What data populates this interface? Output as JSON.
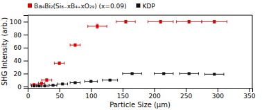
{
  "chart_data": {
    "type": "scatter",
    "xlabel": "Particle Size (μm)",
    "ylabel": "SHG Intensity (arb.)",
    "xlim": [
      0,
      355
    ],
    "ylim": [
      -2,
      110
    ],
    "xticks": [
      0,
      50,
      100,
      150,
      200,
      250,
      300,
      350
    ],
    "yticks": [
      0,
      20,
      40,
      60,
      80,
      100
    ],
    "grid": false,
    "legend": "top",
    "series": [
      {
        "name": "Ba₄Bi₂(Si₈₋xB₄₊xO₂₉) (x=0.09)",
        "color": "#dd0000",
        "marker": "square",
        "x": [
          10,
          22,
          30,
          50,
          75,
          110,
          155,
          210,
          255,
          295
        ],
        "values": [
          3,
          5,
          10,
          36,
          64,
          93,
          100,
          100,
          100,
          100
        ],
        "xerr": [
          5,
          5,
          8,
          8,
          8,
          15,
          15,
          20,
          20,
          20
        ],
        "yerr": [
          1,
          1,
          2,
          2,
          2,
          3,
          2,
          2,
          2,
          2
        ]
      },
      {
        "name": "KDP",
        "color": "#111111",
        "marker": "square",
        "x": [
          10,
          18,
          27,
          40,
          55,
          75,
          100,
          130,
          165,
          215,
          255,
          295
        ],
        "values": [
          1,
          1,
          1,
          2,
          4,
          6,
          8,
          10,
          20,
          20,
          20,
          19
        ],
        "xerr": [
          4,
          4,
          5,
          6,
          8,
          8,
          10,
          12,
          15,
          15,
          15,
          15
        ],
        "yerr": [
          0.5,
          0.5,
          0.5,
          0.5,
          0.5,
          1,
          1,
          1,
          1,
          1,
          1,
          1
        ]
      }
    ]
  }
}
